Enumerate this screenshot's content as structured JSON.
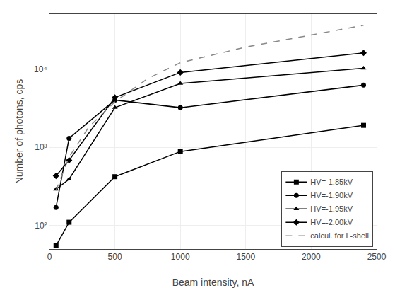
{
  "chart_data": {
    "type": "line",
    "xlabel": "Beam intensity, nA",
    "ylabel": "Number of photons, cps",
    "log": "y",
    "xlim": [
      0,
      2500
    ],
    "ylim": [
      50,
      50000
    ],
    "xticks": [
      0,
      500,
      1000,
      1500,
      2000,
      2500
    ],
    "yticks": [
      {
        "value": 100,
        "label": "10²"
      },
      {
        "value": 1000,
        "label": "10³"
      },
      {
        "value": 10000,
        "label": "10⁴"
      }
    ],
    "grid": true,
    "legend": "lower right",
    "series": [
      {
        "name": "HV=-1.85kV",
        "color": "#000000",
        "marker": "square",
        "line_style": "solid",
        "x": [
          50,
          150,
          500,
          1000,
          2400
        ],
        "values": [
          55,
          110,
          420,
          880,
          1900
        ]
      },
      {
        "name": "HV=-1.90kV",
        "color": "#000000",
        "marker": "circle",
        "line_style": "solid",
        "x": [
          50,
          150,
          500,
          1000,
          2400
        ],
        "values": [
          170,
          1300,
          4000,
          3200,
          6200
        ]
      },
      {
        "name": "HV=-1.95kV",
        "color": "#000000",
        "marker": "triangle-up",
        "line_style": "solid",
        "x": [
          50,
          150,
          500,
          1000,
          2400
        ],
        "values": [
          290,
          390,
          3200,
          6500,
          10200
        ]
      },
      {
        "name": "HV=-2.00kV",
        "color": "#000000",
        "marker": "diamond",
        "line_style": "solid",
        "x": [
          50,
          150,
          500,
          1000,
          2400
        ],
        "values": [
          430,
          680,
          4300,
          9000,
          16000
        ]
      },
      {
        "name": "calcul. for L-shell",
        "color": "#888888",
        "marker": "none",
        "line_style": "dash",
        "x": [
          50,
          150,
          300,
          500,
          750,
          1000,
          1500,
          2000,
          2400
        ],
        "values": [
          280,
          750,
          1800,
          3800,
          7500,
          12000,
          19000,
          27000,
          36000
        ]
      }
    ]
  }
}
